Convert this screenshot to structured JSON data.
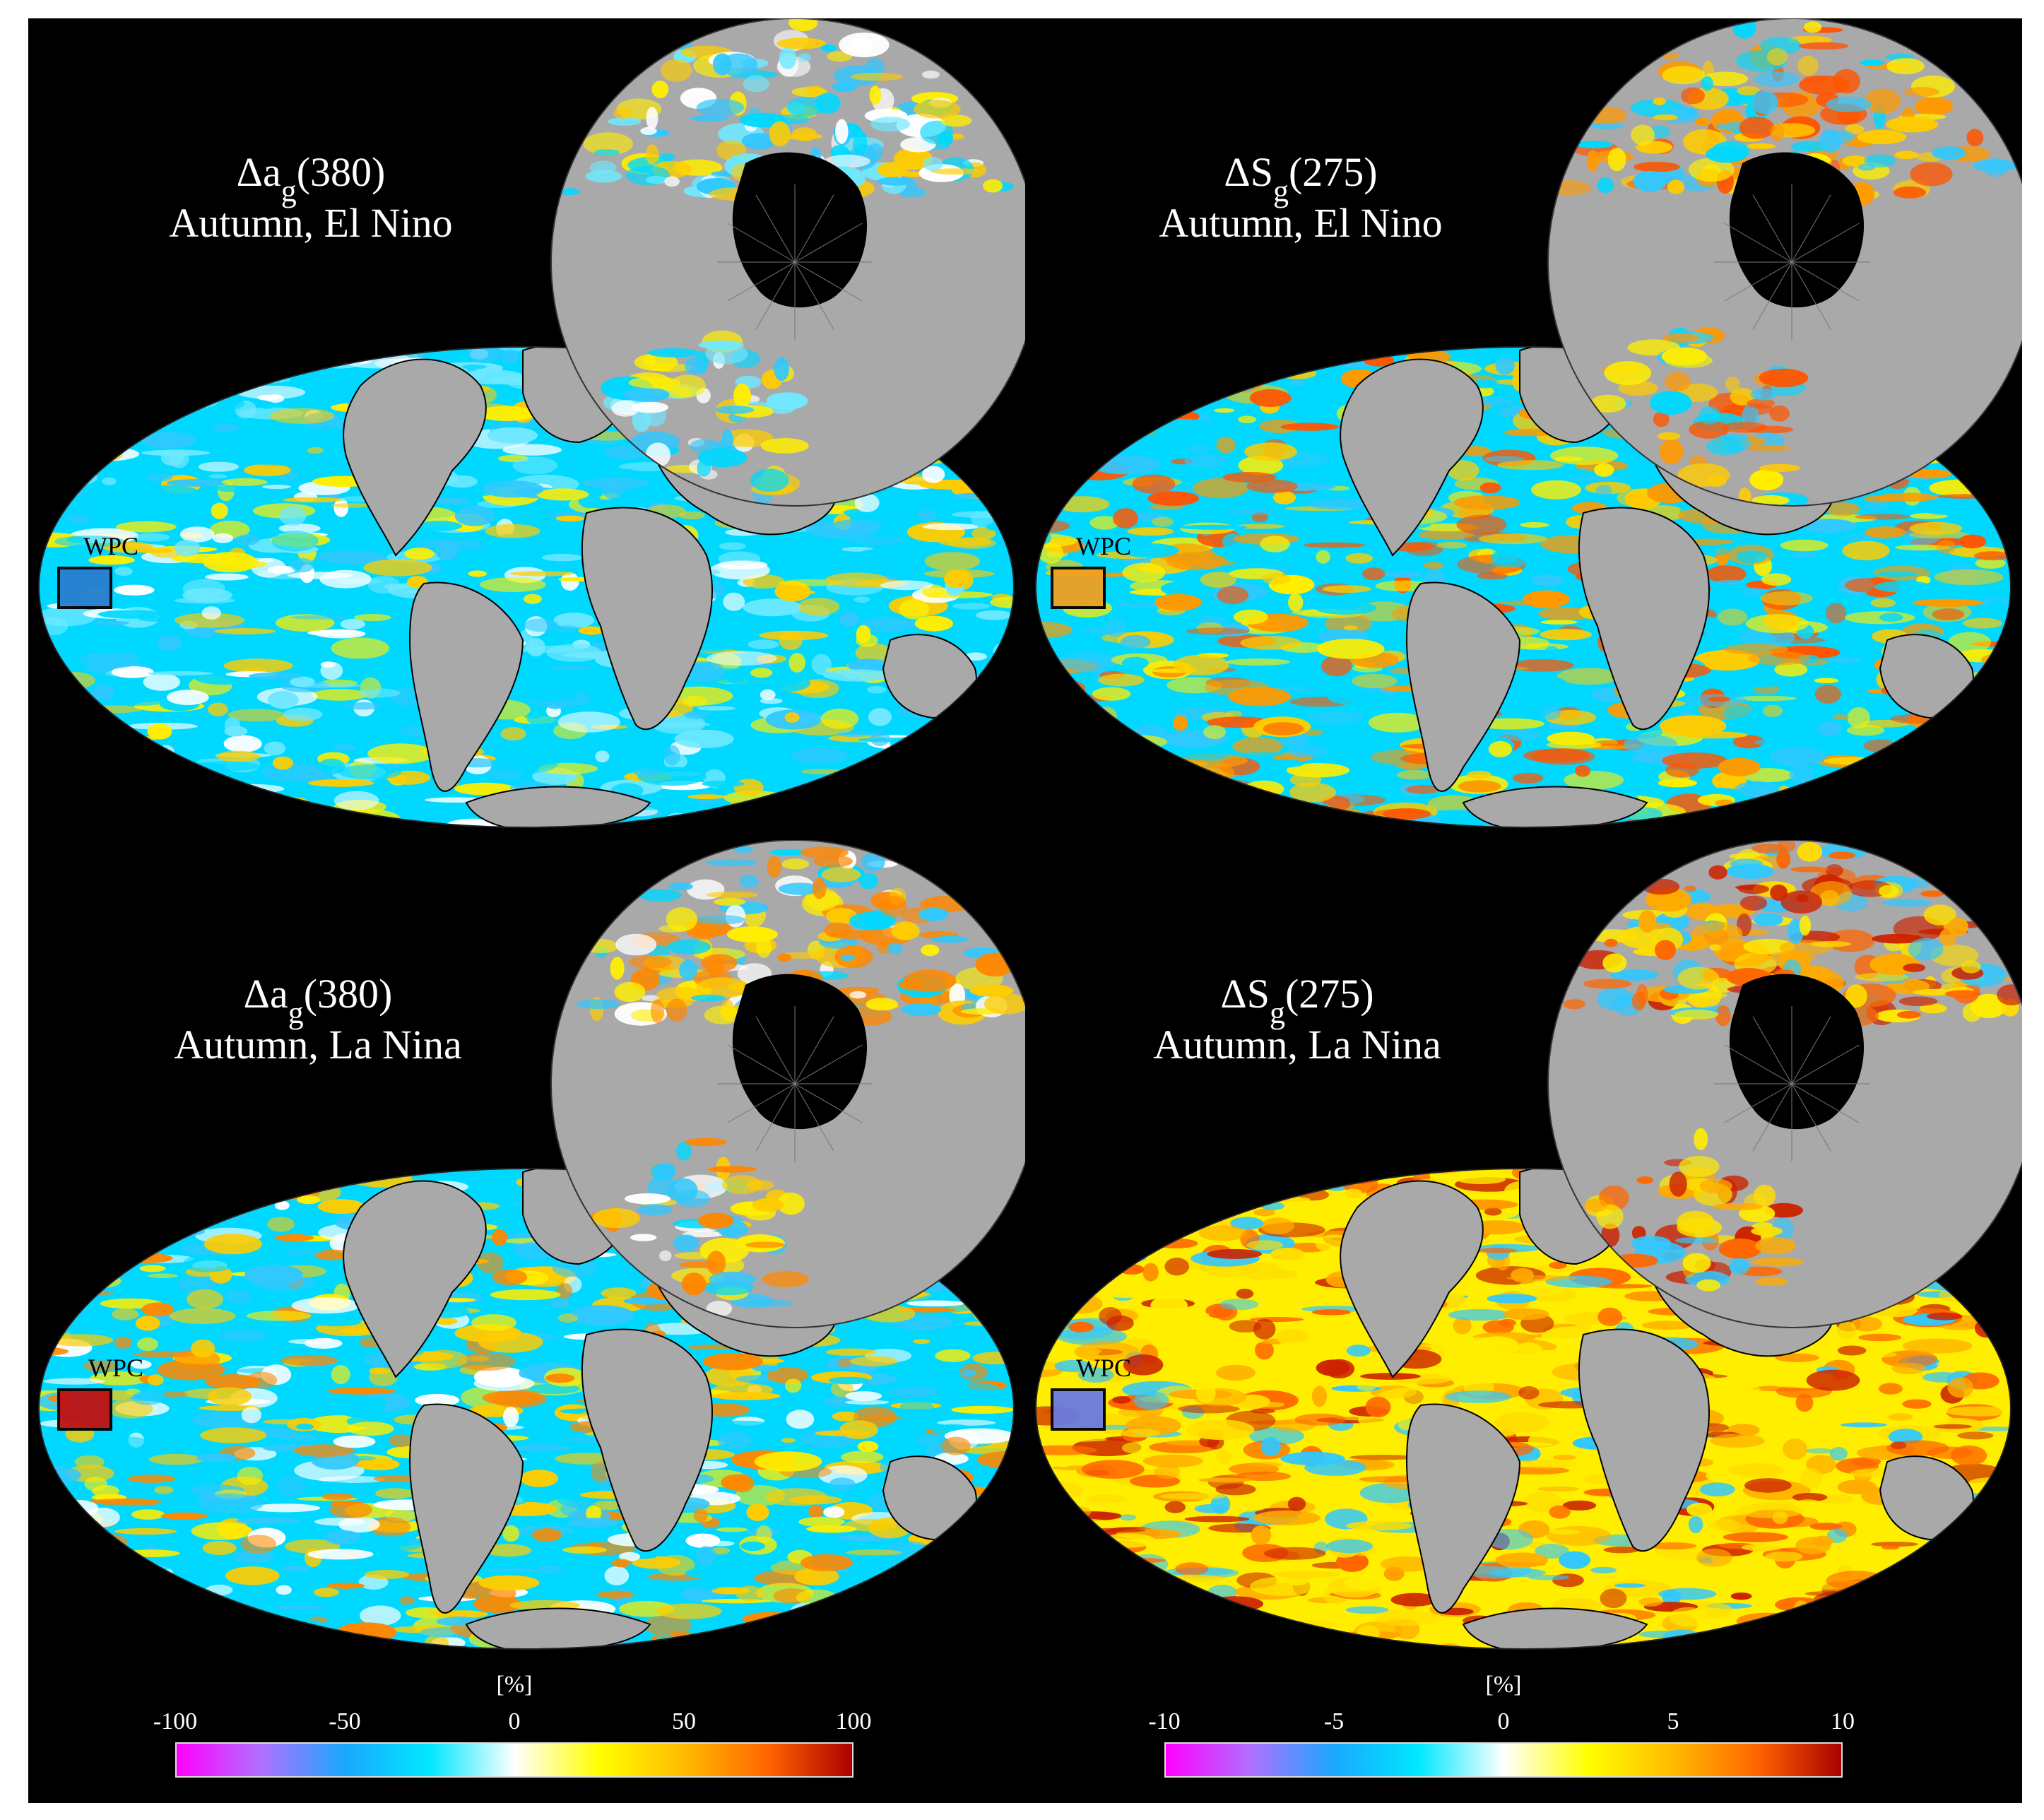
{
  "figure": {
    "panels": [
      {
        "id": "p1",
        "title_symbol": "Δa",
        "title_sub": "g",
        "title_arg": "(380)",
        "caption": "Autumn, El Nino",
        "region_label": "WPC",
        "region_color": "#2a7fd0",
        "scheme": "blue"
      },
      {
        "id": "p2",
        "title_symbol": "ΔS",
        "title_sub": "g",
        "title_arg": "(275)",
        "caption": "Autumn, El Nino",
        "region_label": "WPC",
        "region_color": "#f0a020",
        "scheme": "mixed-warm"
      },
      {
        "id": "p3",
        "title_symbol": "Δa",
        "title_sub": "g",
        "title_arg": "(380)",
        "caption": "Autumn, La Nina",
        "region_label": "WPC",
        "region_color": "#c01010",
        "scheme": "mixed"
      },
      {
        "id": "p4",
        "title_symbol": "ΔS",
        "title_sub": "g",
        "title_arg": "(275)",
        "caption": "Autumn, La Nina",
        "region_label": "WPC",
        "region_color": "#6a7ae0",
        "scheme": "warm"
      }
    ],
    "colorbars": [
      {
        "id": "cb-left",
        "unit": "[%]",
        "ticks": [
          "-100",
          "-50",
          "0",
          "50",
          "100"
        ],
        "colors": [
          "#ff00ff",
          "#b070ff",
          "#1aa8ff",
          "#00e8ff",
          "#ffffff",
          "#ffff00",
          "#ffbb00",
          "#ff6600",
          "#aa0000"
        ]
      },
      {
        "id": "cb-right",
        "unit": "[%]",
        "ticks": [
          "-10",
          "-5",
          "0",
          "5",
          "10"
        ],
        "colors": [
          "#ff00ff",
          "#b070ff",
          "#1aa8ff",
          "#00e8ff",
          "#ffffff",
          "#ffff00",
          "#ffbb00",
          "#ff6600",
          "#aa0000"
        ]
      }
    ],
    "land_color": "#a9a9a9",
    "background_color": "#000000"
  }
}
